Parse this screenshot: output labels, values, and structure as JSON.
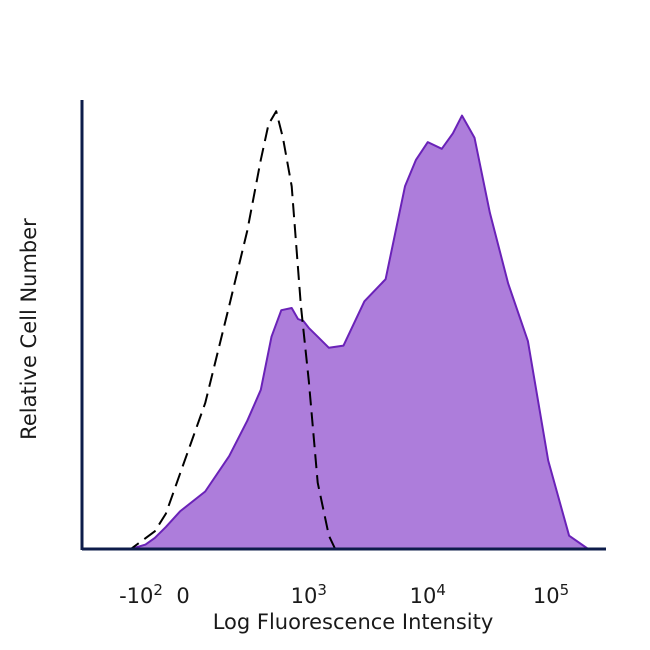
{
  "chart_data": {
    "type": "area",
    "xlabel": "Log Fluorescence Intensity",
    "ylabel": "Relative Cell Number",
    "x_scale": "biexponential",
    "xlim": [
      -300,
      200000
    ],
    "ylim": [
      0,
      1
    ],
    "grid": false,
    "x_ticks": [
      {
        "value": -100,
        "base": "-10",
        "exp": "2"
      },
      {
        "value": 0,
        "base": "0",
        "exp": ""
      },
      {
        "value": 1000,
        "base": "10",
        "exp": "3"
      },
      {
        "value": 10000,
        "base": "10",
        "exp": "4"
      },
      {
        "value": 100000,
        "base": "10",
        "exp": "5"
      }
    ],
    "series": [
      {
        "style": "filled",
        "color": "#ad7ddb",
        "stroke": "#6a22b8",
        "x": [
          -300,
          -150,
          -90,
          -60,
          -30,
          0,
          60,
          150,
          250,
          350,
          450,
          560,
          700,
          800,
          900,
          1000,
          1200,
          1500,
          2000,
          3000,
          4500,
          6500,
          8000,
          10000,
          13000,
          16000,
          19000,
          24000,
          32000,
          45000,
          65000,
          95000,
          140000,
          200000
        ],
        "values": [
          0.0,
          0.0,
          0.01,
          0.025,
          0.05,
          0.085,
          0.13,
          0.21,
          0.29,
          0.36,
          0.48,
          0.54,
          0.545,
          0.52,
          0.515,
          0.5,
          0.48,
          0.455,
          0.46,
          0.56,
          0.61,
          0.82,
          0.88,
          0.92,
          0.905,
          0.94,
          0.98,
          0.93,
          0.76,
          0.6,
          0.47,
          0.2,
          0.03,
          0.0
        ]
      },
      {
        "style": "dashed",
        "color": "#000000",
        "x": [
          -300,
          -150,
          -100,
          -60,
          -30,
          0,
          60,
          150,
          250,
          350,
          420,
          500,
          580,
          700,
          850,
          1000,
          1200,
          1500,
          1700,
          2000
        ],
        "values": [
          0.0,
          0.0,
          0.02,
          0.04,
          0.08,
          0.17,
          0.33,
          0.55,
          0.72,
          0.88,
          0.96,
          0.99,
          0.93,
          0.82,
          0.55,
          0.38,
          0.15,
          0.03,
          0.0,
          0.0
        ]
      }
    ]
  }
}
